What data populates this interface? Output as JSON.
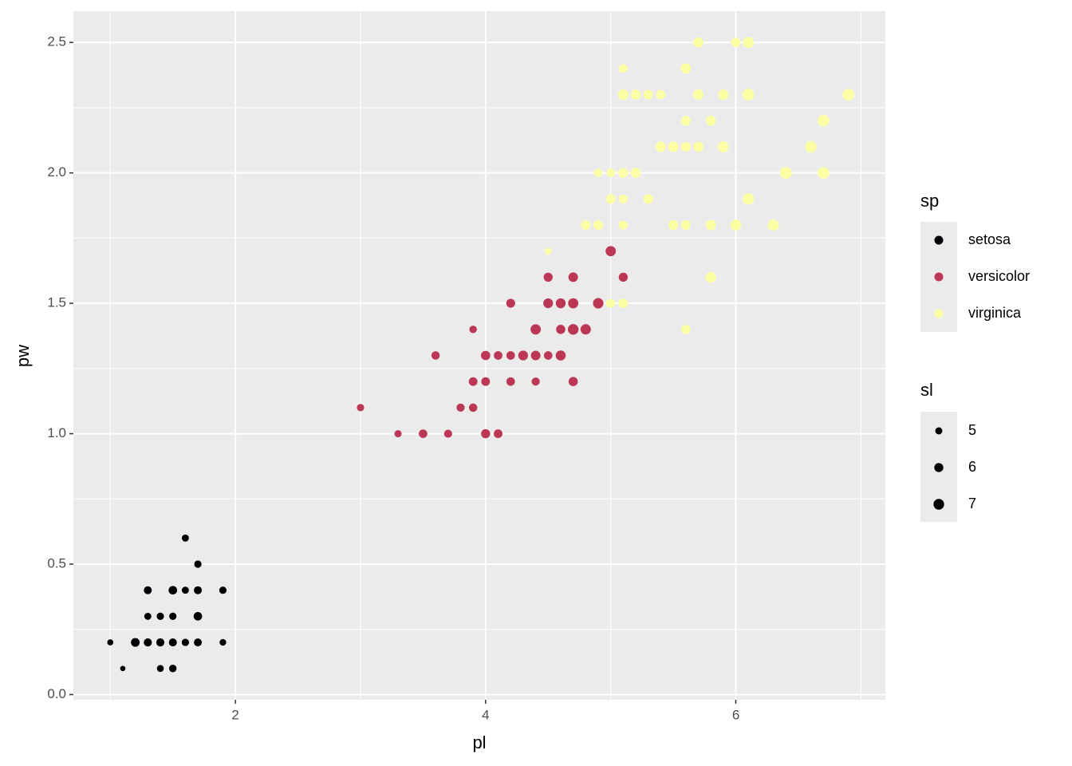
{
  "chart_data": {
    "type": "scatter",
    "x_label": "pl",
    "y_label": "pw",
    "color_legend_title": "sp",
    "size_legend_title": "sl",
    "xlim": [
      0.705,
      7.195
    ],
    "ylim": [
      -0.02,
      2.62
    ],
    "xticks": [
      2,
      4,
      6
    ],
    "yticks": [
      {
        "value": 0,
        "label": "0.0"
      },
      {
        "value": 0.5,
        "label": "0.5"
      },
      {
        "value": 1,
        "label": "1.0"
      },
      {
        "value": 1.5,
        "label": "1.5"
      },
      {
        "value": 2,
        "label": "2.0"
      },
      {
        "value": 2.5,
        "label": "2.5"
      }
    ],
    "x_minor_grid": [
      1,
      3,
      5,
      7
    ],
    "y_minor_grid": [
      0.25,
      0.75,
      1.25,
      1.75,
      2.25
    ],
    "grid": true,
    "size_breaks": [
      5,
      6,
      7
    ],
    "series": [
      {
        "name": "setosa",
        "color": "#000004",
        "x": [
          1.4,
          1.4,
          1.3,
          1.5,
          1.4,
          1.7,
          1.4,
          1.5,
          1.4,
          1.5,
          1.5,
          1.6,
          1.4,
          1.1,
          1.2,
          1.5,
          1.3,
          1.4,
          1.7,
          1.5,
          1.7,
          1.5,
          1.0,
          1.7,
          1.9,
          1.6,
          1.6,
          1.5,
          1.4,
          1.6,
          1.6,
          1.5,
          1.5,
          1.4,
          1.5,
          1.2,
          1.3,
          1.4,
          1.3,
          1.5,
          1.3,
          1.3,
          1.3,
          1.6,
          1.9,
          1.4,
          1.6,
          1.4,
          1.5,
          1.4
        ],
        "values": [
          0.2,
          0.2,
          0.2,
          0.2,
          0.2,
          0.4,
          0.3,
          0.2,
          0.2,
          0.1,
          0.2,
          0.2,
          0.1,
          0.1,
          0.2,
          0.4,
          0.4,
          0.3,
          0.3,
          0.3,
          0.2,
          0.4,
          0.2,
          0.5,
          0.2,
          0.2,
          0.4,
          0.2,
          0.2,
          0.2,
          0.2,
          0.4,
          0.1,
          0.2,
          0.2,
          0.2,
          0.2,
          0.1,
          0.2,
          0.2,
          0.3,
          0.3,
          0.2,
          0.6,
          0.4,
          0.3,
          0.2,
          0.2,
          0.2,
          0.2
        ],
        "size": [
          5.1,
          4.9,
          4.7,
          4.6,
          5.0,
          5.4,
          4.6,
          5.0,
          4.4,
          4.9,
          5.4,
          4.8,
          4.8,
          4.3,
          5.8,
          5.7,
          5.4,
          5.1,
          5.7,
          5.1,
          5.4,
          5.1,
          4.6,
          5.1,
          4.8,
          5.0,
          5.0,
          5.2,
          5.2,
          4.7,
          4.8,
          5.4,
          5.2,
          5.5,
          4.9,
          5.0,
          5.5,
          4.9,
          4.4,
          5.1,
          5.0,
          4.5,
          4.4,
          5.0,
          5.1,
          4.8,
          5.1,
          4.6,
          5.3,
          5.0
        ]
      },
      {
        "name": "versicolor",
        "color": "#bb3754",
        "x": [
          4.7,
          4.5,
          4.9,
          4.0,
          4.6,
          4.5,
          4.7,
          3.3,
          4.6,
          3.9,
          3.5,
          4.2,
          4.0,
          4.7,
          3.6,
          4.4,
          4.5,
          4.1,
          4.5,
          3.9,
          4.8,
          4.0,
          4.9,
          4.7,
          4.3,
          4.4,
          4.8,
          5.0,
          4.5,
          3.5,
          3.8,
          3.7,
          3.9,
          5.1,
          4.5,
          4.5,
          4.7,
          4.4,
          4.1,
          4.0,
          4.4,
          4.6,
          4.0,
          3.3,
          4.2,
          4.2,
          4.2,
          4.3,
          3.0,
          4.1
        ],
        "values": [
          1.4,
          1.5,
          1.5,
          1.3,
          1.5,
          1.3,
          1.6,
          1.0,
          1.3,
          1.4,
          1.0,
          1.5,
          1.0,
          1.4,
          1.3,
          1.4,
          1.5,
          1.0,
          1.5,
          1.1,
          1.8,
          1.3,
          1.5,
          1.2,
          1.3,
          1.4,
          1.4,
          1.7,
          1.5,
          1.0,
          1.1,
          1.0,
          1.2,
          1.6,
          1.5,
          1.6,
          1.5,
          1.3,
          1.3,
          1.3,
          1.2,
          1.4,
          1.2,
          1.0,
          1.3,
          1.2,
          1.3,
          1.3,
          1.1,
          1.3
        ],
        "size": [
          7.0,
          6.4,
          6.9,
          5.5,
          6.5,
          5.7,
          6.3,
          4.9,
          6.6,
          5.2,
          5.0,
          5.9,
          6.0,
          6.1,
          5.6,
          6.7,
          5.6,
          5.8,
          6.2,
          5.6,
          5.9,
          6.1,
          6.3,
          6.1,
          6.4,
          6.6,
          6.8,
          6.7,
          6.0,
          5.7,
          5.5,
          5.5,
          5.8,
          6.0,
          5.4,
          6.0,
          6.7,
          6.3,
          5.6,
          5.5,
          5.5,
          6.1,
          5.8,
          5.0,
          5.6,
          5.7,
          5.7,
          6.2,
          5.1,
          5.7
        ]
      },
      {
        "name": "virginica",
        "color": "#fcffa4",
        "x": [
          6.0,
          5.1,
          5.9,
          5.6,
          5.8,
          6.6,
          4.5,
          6.3,
          5.8,
          6.1,
          5.1,
          5.3,
          5.5,
          5.0,
          5.1,
          5.3,
          5.5,
          6.7,
          6.9,
          5.0,
          5.7,
          4.9,
          6.7,
          4.9,
          5.7,
          6.0,
          4.8,
          4.9,
          5.6,
          5.8,
          6.1,
          6.4,
          5.6,
          5.1,
          5.6,
          6.1,
          5.6,
          5.5,
          4.8,
          5.4,
          5.6,
          5.1,
          5.1,
          5.9,
          5.7,
          5.2,
          5.0,
          5.2,
          5.4,
          5.1
        ],
        "values": [
          2.5,
          1.9,
          2.1,
          1.8,
          2.2,
          2.1,
          1.7,
          1.8,
          1.8,
          2.5,
          2.0,
          1.9,
          2.1,
          2.0,
          2.4,
          2.3,
          1.8,
          2.2,
          2.3,
          1.5,
          2.3,
          2.0,
          2.0,
          1.8,
          2.1,
          1.8,
          1.8,
          1.8,
          2.1,
          1.6,
          1.9,
          2.0,
          2.2,
          1.5,
          1.4,
          2.3,
          2.4,
          1.8,
          1.8,
          2.1,
          2.4,
          2.3,
          1.9,
          2.3,
          2.5,
          2.3,
          1.9,
          2.0,
          2.3,
          1.8
        ],
        "size": [
          6.3,
          5.8,
          7.1,
          6.3,
          6.5,
          7.6,
          4.9,
          7.3,
          6.7,
          7.2,
          6.5,
          6.4,
          6.8,
          5.7,
          5.8,
          6.4,
          6.5,
          7.7,
          7.7,
          6.0,
          6.9,
          5.6,
          7.7,
          6.3,
          6.7,
          7.2,
          6.2,
          6.1,
          6.4,
          7.2,
          7.4,
          7.9,
          6.4,
          6.3,
          6.1,
          7.7,
          6.3,
          6.4,
          6.0,
          6.9,
          6.7,
          6.9,
          5.8,
          6.8,
          6.7,
          6.7,
          6.3,
          6.5,
          6.2,
          5.9
        ]
      }
    ]
  }
}
